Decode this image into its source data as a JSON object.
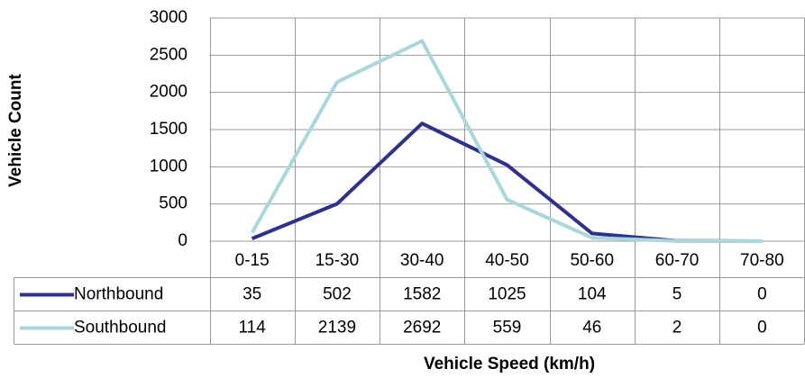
{
  "chart_data": {
    "type": "line",
    "x_label": "Vehicle Speed (km/h)",
    "y_label": "Vehicle Count",
    "categories": [
      "0-15",
      "15-30",
      "30-40",
      "40-50",
      "50-60",
      "60-70",
      "70-80"
    ],
    "series": [
      {
        "name": "Northbound",
        "color": "#2e3192",
        "values": [
          35,
          502,
          1582,
          1025,
          104,
          5,
          0
        ]
      },
      {
        "name": "Southbound",
        "color": "#a8d8dc",
        "values": [
          114,
          2139,
          2692,
          559,
          46,
          2,
          0
        ]
      }
    ],
    "ylim": [
      0,
      3000
    ],
    "yticks": [
      0,
      500,
      1000,
      1500,
      2000,
      2500,
      3000
    ],
    "grid": true,
    "data_table": true
  }
}
